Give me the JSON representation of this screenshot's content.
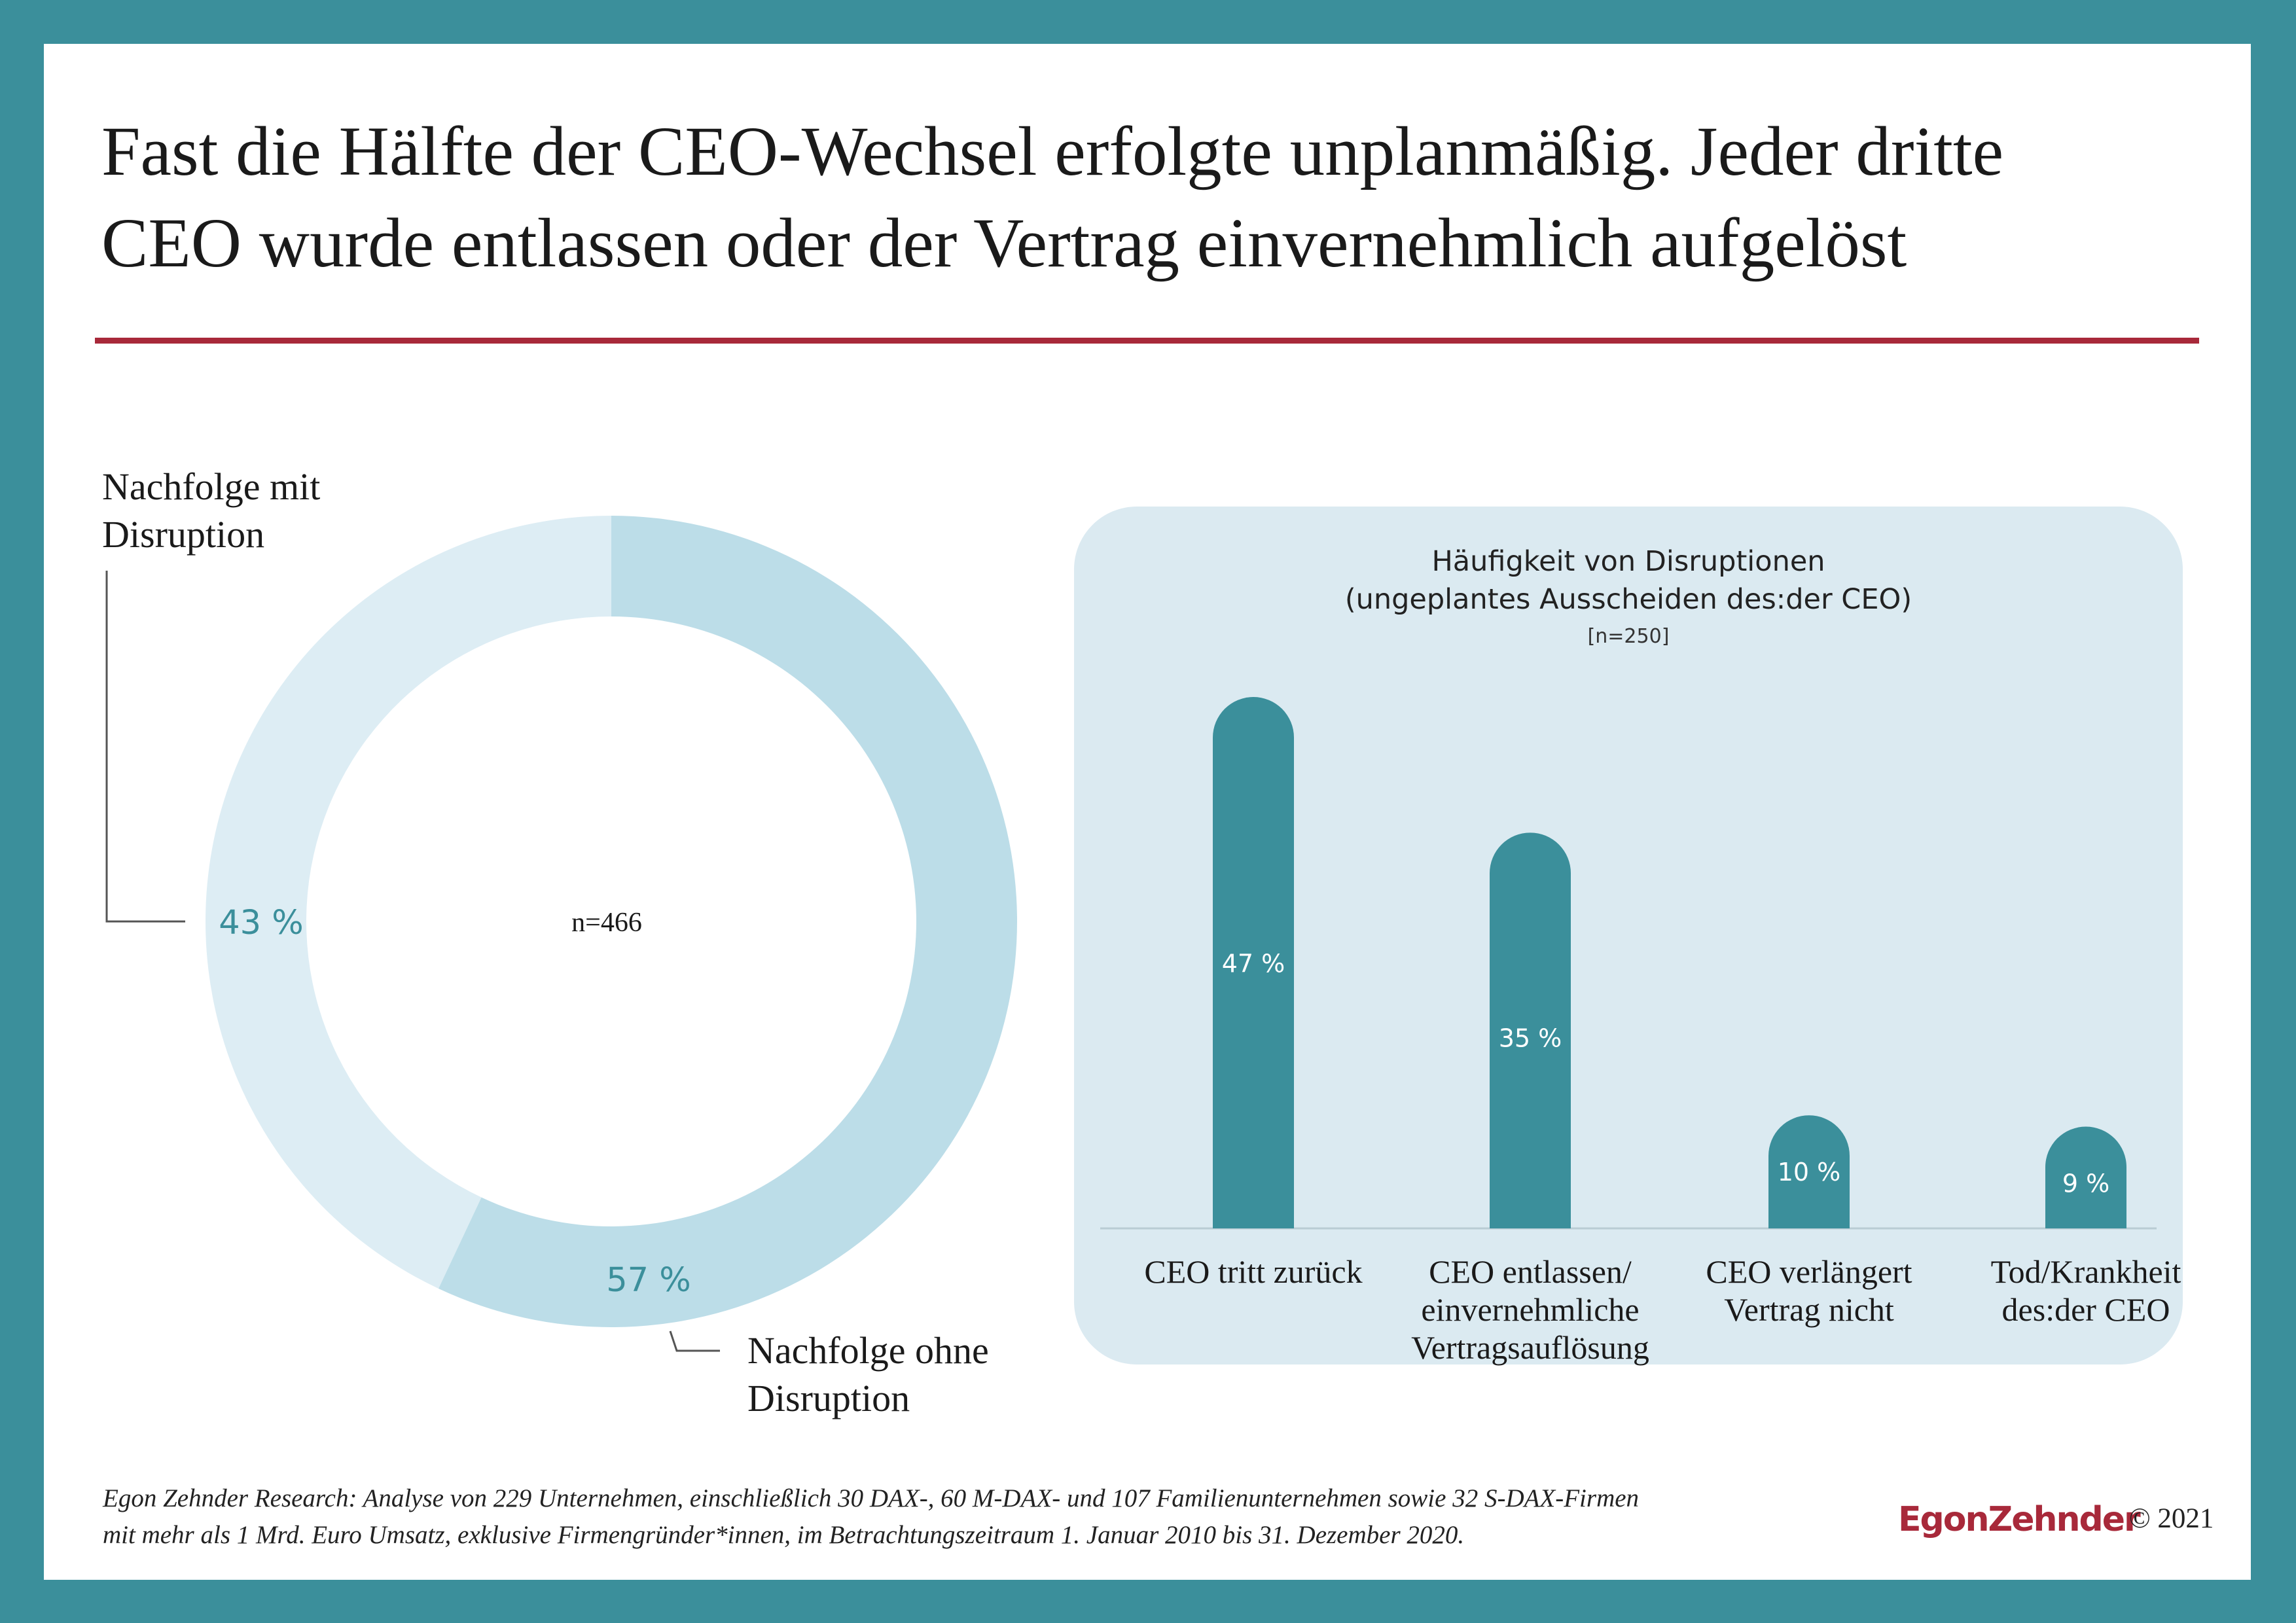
{
  "title_line1": "Fast die Hälfte der CEO-Wechsel erfolgte unplanmäßig. Jeder dritte",
  "title_line2": "CEO wurde entlassen oder der Vertrag einvernehmlich aufgelöst",
  "colors": {
    "frame": "#3b8f9b",
    "rule": "#a8293a",
    "donut_light": "#ddedf4",
    "donut_mid": "#bcdde8",
    "bar": "#3b8f9b",
    "card": "#dbeaf1"
  },
  "chart_data": [
    {
      "type": "pie",
      "center_label": "n=466",
      "slices": [
        {
          "label": "Nachfolge mit\nDisruption",
          "value": 43,
          "value_label": "43 %"
        },
        {
          "label": "Nachfolge ohne\nDisruption",
          "value": 57,
          "value_label": "57 %"
        }
      ]
    },
    {
      "type": "bar",
      "title": "Häufigkeit von Disruptionen",
      "subtitle": "(ungeplantes Ausscheiden des:der CEO)",
      "note": "[n=250]",
      "categories": [
        "CEO tritt zurück",
        "CEO entlassen/\neinvernehmliche\nVertragsauflösung",
        "CEO verlängert\nVertrag nicht",
        "Tod/Krankheit\ndes:der CEO"
      ],
      "values": [
        47,
        35,
        10,
        9
      ],
      "value_labels": [
        "47 %",
        "35 %",
        "10 %",
        "9 %"
      ],
      "unit": "%",
      "grid": false
    }
  ],
  "footnote": "Egon Zehnder Research: Analyse von 229 Unternehmen, einschließlich 30 DAX-, 60 M-DAX- und 107 Familienunternehmen sowie 32 S-DAX-Firmen\nmit mehr als 1 Mrd. Euro Umsatz, exklusive Firmengründer*innen, im Betrachtungszeitraum 1. Januar 2010 bis 31. Dezember 2020.",
  "brand": "EgonZehnder",
  "copyright": "© 2021"
}
